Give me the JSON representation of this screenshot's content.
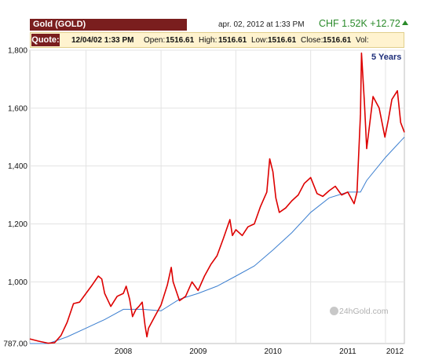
{
  "header": {
    "title": "Gold (GOLD)",
    "date": "apr. 02, 2012 at 1:33 PM",
    "price_text": "CHF 1.52K +12.72"
  },
  "quote": {
    "label": "Quote:",
    "datetime": "12/04/02 1:33 PM",
    "open_label": "Open:",
    "open": "1516.61",
    "high_label": "High:",
    "high": "1516.61",
    "low_label": "Low:",
    "low": "1516.61",
    "close_label": "Close:",
    "close": "1516.61",
    "vol_label": "Vol:"
  },
  "period_label": "5 Years",
  "watermark": "24hGold.com",
  "colors": {
    "price_line": "#dd0000",
    "average_line": "#3c7fd0",
    "grid": "#e3e3e3",
    "accent": "#7a1e1e",
    "up": "#2a8a2a"
  },
  "chart_data": {
    "type": "line",
    "x_unit": "date",
    "x_tick_labels": [
      "2008",
      "2009",
      "2010",
      "2011",
      "2012"
    ],
    "y_tick_labels": [
      "787.00",
      "1,000",
      "1,200",
      "1,400",
      "1,600",
      "1,800"
    ],
    "y_ticks": [
      787,
      1000,
      1200,
      1400,
      1600,
      1800
    ],
    "ylim": [
      787,
      1800
    ],
    "xlim": [
      "2007-04-02",
      "2012-04-02"
    ],
    "grid": true,
    "series": [
      {
        "role": "price",
        "points": [
          [
            "2007-04-02",
            803
          ],
          [
            "2007-05-15",
            795
          ],
          [
            "2007-07-01",
            788
          ],
          [
            "2007-08-01",
            790
          ],
          [
            "2007-09-01",
            815
          ],
          [
            "2007-10-01",
            860
          ],
          [
            "2007-11-01",
            925
          ],
          [
            "2007-12-01",
            930
          ],
          [
            "2008-01-01",
            960
          ],
          [
            "2008-02-01",
            990
          ],
          [
            "2008-03-01",
            1020
          ],
          [
            "2008-03-18",
            1010
          ],
          [
            "2008-04-01",
            960
          ],
          [
            "2008-05-01",
            915
          ],
          [
            "2008-06-01",
            950
          ],
          [
            "2008-07-01",
            960
          ],
          [
            "2008-07-15",
            985
          ],
          [
            "2008-08-01",
            940
          ],
          [
            "2008-08-15",
            880
          ],
          [
            "2008-09-01",
            905
          ],
          [
            "2008-09-15",
            915
          ],
          [
            "2008-10-01",
            930
          ],
          [
            "2008-10-15",
            850
          ],
          [
            "2008-10-24",
            810
          ],
          [
            "2008-11-01",
            840
          ],
          [
            "2008-12-01",
            880
          ],
          [
            "2009-01-01",
            920
          ],
          [
            "2009-02-01",
            990
          ],
          [
            "2009-02-20",
            1050
          ],
          [
            "2009-03-01",
            1000
          ],
          [
            "2009-04-01",
            935
          ],
          [
            "2009-05-01",
            950
          ],
          [
            "2009-06-01",
            1000
          ],
          [
            "2009-07-01",
            970
          ],
          [
            "2009-08-01",
            1020
          ],
          [
            "2009-09-01",
            1060
          ],
          [
            "2009-10-01",
            1090
          ],
          [
            "2009-11-01",
            1150
          ],
          [
            "2009-12-03",
            1215
          ],
          [
            "2009-12-15",
            1160
          ],
          [
            "2010-01-01",
            1180
          ],
          [
            "2010-02-01",
            1160
          ],
          [
            "2010-03-01",
            1190
          ],
          [
            "2010-04-01",
            1200
          ],
          [
            "2010-05-01",
            1260
          ],
          [
            "2010-06-01",
            1310
          ],
          [
            "2010-06-15",
            1425
          ],
          [
            "2010-07-01",
            1380
          ],
          [
            "2010-07-15",
            1290
          ],
          [
            "2010-08-01",
            1240
          ],
          [
            "2010-09-01",
            1255
          ],
          [
            "2010-10-01",
            1280
          ],
          [
            "2010-11-01",
            1300
          ],
          [
            "2010-12-01",
            1340
          ],
          [
            "2011-01-01",
            1360
          ],
          [
            "2011-02-01",
            1305
          ],
          [
            "2011-03-01",
            1295
          ],
          [
            "2011-04-01",
            1315
          ],
          [
            "2011-05-01",
            1330
          ],
          [
            "2011-06-01",
            1300
          ],
          [
            "2011-07-01",
            1310
          ],
          [
            "2011-08-01",
            1270
          ],
          [
            "2011-08-15",
            1310
          ],
          [
            "2011-09-01",
            1580
          ],
          [
            "2011-09-06",
            1790
          ],
          [
            "2011-09-20",
            1620
          ],
          [
            "2011-10-01",
            1460
          ],
          [
            "2011-11-01",
            1640
          ],
          [
            "2011-12-01",
            1600
          ],
          [
            "2011-12-29",
            1500
          ],
          [
            "2012-01-15",
            1560
          ],
          [
            "2012-02-01",
            1630
          ],
          [
            "2012-02-28",
            1660
          ],
          [
            "2012-03-15",
            1550
          ],
          [
            "2012-04-02",
            1516.61
          ]
        ]
      },
      {
        "role": "moving_average",
        "points": [
          [
            "2007-04-02",
            787
          ],
          [
            "2007-07-01",
            787
          ],
          [
            "2007-10-01",
            810
          ],
          [
            "2008-01-01",
            840
          ],
          [
            "2008-04-01",
            870
          ],
          [
            "2008-07-01",
            905
          ],
          [
            "2008-10-01",
            905
          ],
          [
            "2009-01-01",
            900
          ],
          [
            "2009-04-01",
            940
          ],
          [
            "2009-07-01",
            960
          ],
          [
            "2009-10-01",
            985
          ],
          [
            "2010-01-01",
            1020
          ],
          [
            "2010-04-01",
            1055
          ],
          [
            "2010-07-01",
            1110
          ],
          [
            "2010-10-01",
            1170
          ],
          [
            "2011-01-01",
            1240
          ],
          [
            "2011-04-01",
            1290
          ],
          [
            "2011-07-01",
            1310
          ],
          [
            "2011-09-01",
            1310
          ],
          [
            "2011-10-01",
            1350
          ],
          [
            "2012-01-01",
            1430
          ],
          [
            "2012-04-02",
            1500
          ]
        ]
      }
    ]
  }
}
